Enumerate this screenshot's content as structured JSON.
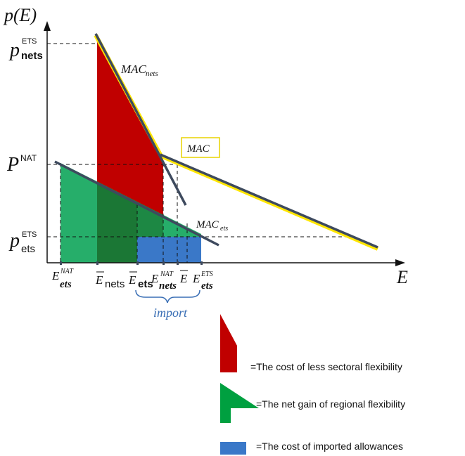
{
  "axes": {
    "y_label": "p(E)",
    "x_label": "E"
  },
  "prices": {
    "p_nets": {
      "base": "p",
      "sub": "nets",
      "sup": "ETS"
    },
    "p_nat": {
      "base": "P",
      "sup": "NAT"
    },
    "p_ets": {
      "base": "p",
      "sub": "ets",
      "sup": "ETS"
    }
  },
  "curves": {
    "mac_nets": {
      "base": "MAC",
      "sub": "nets"
    },
    "mac": {
      "label": "MAC"
    },
    "mac_ets": {
      "base": "MAC",
      "sub": "ets"
    }
  },
  "quantities": [
    {
      "base": "E",
      "sub": "ets",
      "sup": "NAT",
      "bar": false
    },
    {
      "base": "E",
      "sub": "nets",
      "sup": "",
      "bar": true
    },
    {
      "base": "E",
      "sub": "ets",
      "sup": "",
      "bar": true
    },
    {
      "base": "E",
      "sub": "nets",
      "sup": "NAT",
      "bar": false
    },
    {
      "base": "E",
      "sub": "",
      "sup": "",
      "bar": true
    },
    {
      "base": "E",
      "sub": "ets",
      "sup": "ETS",
      "bar": false
    }
  ],
  "import_label": "import",
  "legend": [
    {
      "text": "=The cost of less sectoral flexibility",
      "color": "#c00000"
    },
    {
      "text": "=The net gain of regional flexibility",
      "color": "#00a040"
    },
    {
      "text": "=The cost of imported allowances",
      "color": "#3a78c8"
    }
  ],
  "colors": {
    "red": "#c00000",
    "green": "#00a050",
    "blue": "#3a78c8",
    "yellow": "#ffe600",
    "line": "#3e4a5e",
    "import_blue": "#3a6fb5"
  }
}
